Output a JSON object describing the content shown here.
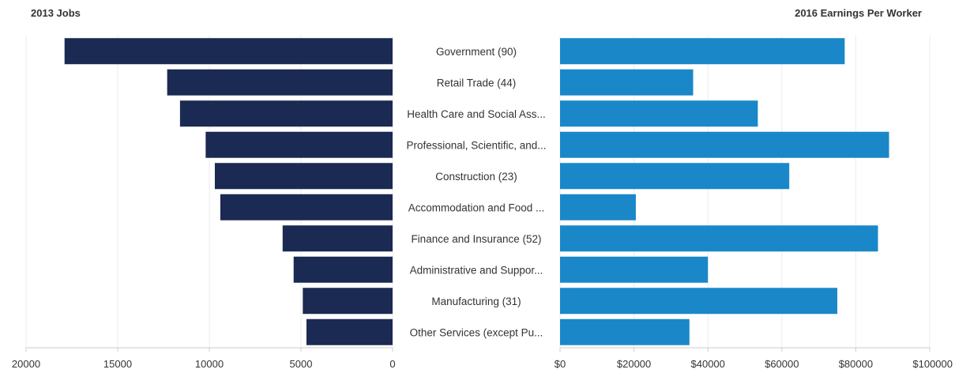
{
  "chart_data": [
    {
      "type": "bar",
      "orientation": "horizontal",
      "direction": "right-to-left",
      "title": "2013 Jobs",
      "categories": [
        "Government (90)",
        "Retail Trade (44)",
        "Health Care and Social Ass...",
        "Professional, Scientific, and...",
        "Construction (23)",
        "Accommodation and Food ...",
        "Finance and Insurance (52)",
        "Administrative and Suppor...",
        "Manufacturing (31)",
        "Other Services (except Pu..."
      ],
      "values": [
        17900,
        12300,
        11600,
        10200,
        9700,
        9400,
        6000,
        5400,
        4900,
        4700
      ],
      "xlim": [
        0,
        20000
      ],
      "ticks": [
        "20000",
        "15000",
        "10000",
        "5000",
        "0"
      ],
      "tick_values": [
        20000,
        15000,
        10000,
        5000,
        0
      ],
      "color": "#1b2a52",
      "grid": true
    },
    {
      "type": "bar",
      "orientation": "horizontal",
      "direction": "left-to-right",
      "title": "2016 Earnings Per Worker",
      "categories": [
        "Government (90)",
        "Retail Trade (44)",
        "Health Care and Social Ass...",
        "Professional, Scientific, and...",
        "Construction (23)",
        "Accommodation and Food ...",
        "Finance and Insurance (52)",
        "Administrative and Suppor...",
        "Manufacturing (31)",
        "Other Services (except Pu..."
      ],
      "values": [
        77000,
        36000,
        53500,
        89000,
        62000,
        20500,
        86000,
        40000,
        75000,
        35000
      ],
      "xlim": [
        0,
        100000
      ],
      "ticks": [
        "$0",
        "$20000",
        "$40000",
        "$60000",
        "$80000",
        "$100000"
      ],
      "tick_values": [
        0,
        20000,
        40000,
        60000,
        80000,
        100000
      ],
      "color": "#1a87c8",
      "grid": true
    }
  ]
}
